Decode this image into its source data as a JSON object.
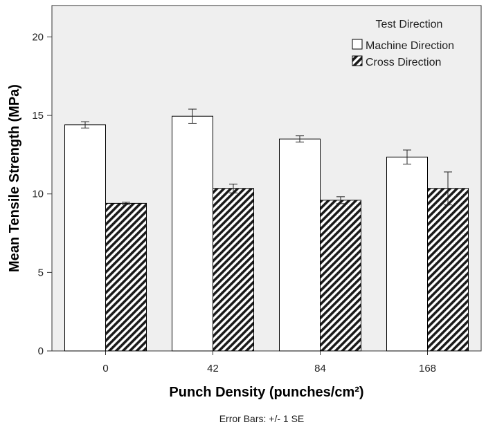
{
  "chart_data": {
    "type": "bar",
    "xlabel": "Punch Density (punches/cm²)",
    "ylabel": "Mean Tensile Strength (MPa)",
    "categories": [
      "0",
      "42",
      "84",
      "168"
    ],
    "ylim": [
      0,
      22
    ],
    "yticks": [
      "0",
      "5",
      "10",
      "15",
      "20"
    ],
    "ytick_values": [
      0,
      5,
      10,
      15,
      20
    ],
    "legend": {
      "title": "Test Direction",
      "placement": "top-right"
    },
    "series": [
      {
        "name": "Machine Direction",
        "values": [
          14.4,
          14.95,
          13.5,
          12.35
        ],
        "se": [
          0.2,
          0.45,
          0.2,
          0.45
        ],
        "fill": "#ffffff"
      },
      {
        "name": "Cross Direction",
        "values": [
          9.4,
          10.35,
          9.6,
          10.35
        ],
        "se": [
          0.08,
          0.28,
          0.22,
          1.05
        ],
        "fill": "hatched"
      }
    ],
    "grid": false,
    "footnote": "Error Bars: +/- 1 SE"
  },
  "colors": {
    "plot_background": "#efefef",
    "bar_stroke": "#000000",
    "hatch": "#1a1a1a"
  }
}
